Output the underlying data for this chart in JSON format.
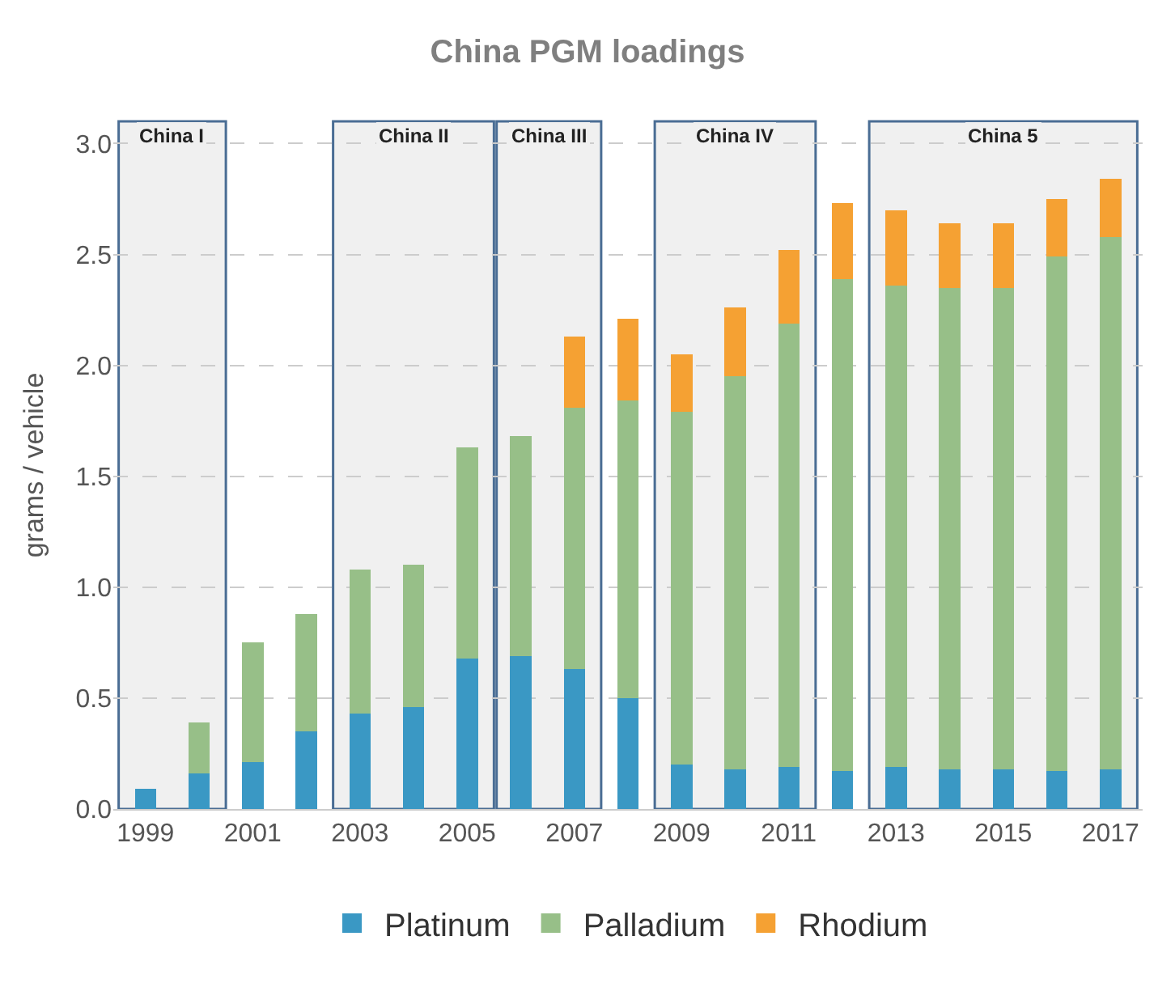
{
  "chart_data": {
    "type": "bar",
    "title": "China PGM loadings",
    "ylabel": "grams / vehicle",
    "x": [
      1999,
      2000,
      2001,
      2002,
      2003,
      2004,
      2005,
      2006,
      2007,
      2008,
      2009,
      2010,
      2011,
      2012,
      2013,
      2014,
      2015,
      2016,
      2017
    ],
    "stacked": true,
    "series": [
      {
        "name": "Platinum",
        "color": "#3a98c4",
        "values": [
          0.09,
          0.16,
          0.21,
          0.35,
          0.43,
          0.46,
          0.68,
          0.69,
          0.63,
          0.5,
          0.2,
          0.18,
          0.19,
          0.17,
          0.19,
          0.18,
          0.18,
          0.17,
          0.18
        ]
      },
      {
        "name": "Palladium",
        "color": "#97bf88",
        "values": [
          null,
          0.23,
          0.54,
          0.53,
          0.65,
          0.64,
          0.95,
          0.99,
          1.18,
          1.34,
          1.59,
          1.77,
          2.0,
          2.22,
          2.17,
          2.17,
          2.17,
          2.32,
          2.4
        ]
      },
      {
        "name": "Rhodium",
        "color": "#f5a133",
        "values": [
          null,
          null,
          null,
          null,
          null,
          null,
          null,
          null,
          0.32,
          0.37,
          0.26,
          0.31,
          0.33,
          0.34,
          0.34,
          0.29,
          0.29,
          0.26,
          0.26
        ]
      }
    ],
    "xlim": [
      1998.4,
      2017.6
    ],
    "xticks": [
      1999,
      2001,
      2003,
      2005,
      2007,
      2009,
      2011,
      2013,
      2015,
      2017
    ],
    "ylim": [
      0,
      3.1
    ],
    "yticks": [
      {
        "value": 0,
        "label": "0.0"
      },
      0.5,
      {
        "value": 1,
        "label": "1.0"
      },
      1.5,
      {
        "value": 2,
        "label": "2.0"
      },
      2.5,
      {
        "value": 3,
        "label": "3.0"
      }
    ],
    "bands": [
      {
        "axis": "x",
        "from": 1998.5,
        "to": 2000.5,
        "label": "China I",
        "color": "#f0f0f0"
      },
      {
        "axis": "x",
        "from": 2002.5,
        "to": 2005.5,
        "label": "China II",
        "color": "#f0f0f0"
      },
      {
        "axis": "x",
        "from": 2005.55,
        "to": 2007.5,
        "label": "China III",
        "color": "#f0f0f0"
      },
      {
        "axis": "x",
        "from": 2008.5,
        "to": 2011.5,
        "label": "China IV",
        "color": "#f0f0f0"
      },
      {
        "axis": "x",
        "from": 2012.5,
        "to": 2017.5,
        "label": "China 5",
        "color": "#f0f0f0"
      }
    ],
    "grid": "y",
    "legend": "bottom"
  }
}
